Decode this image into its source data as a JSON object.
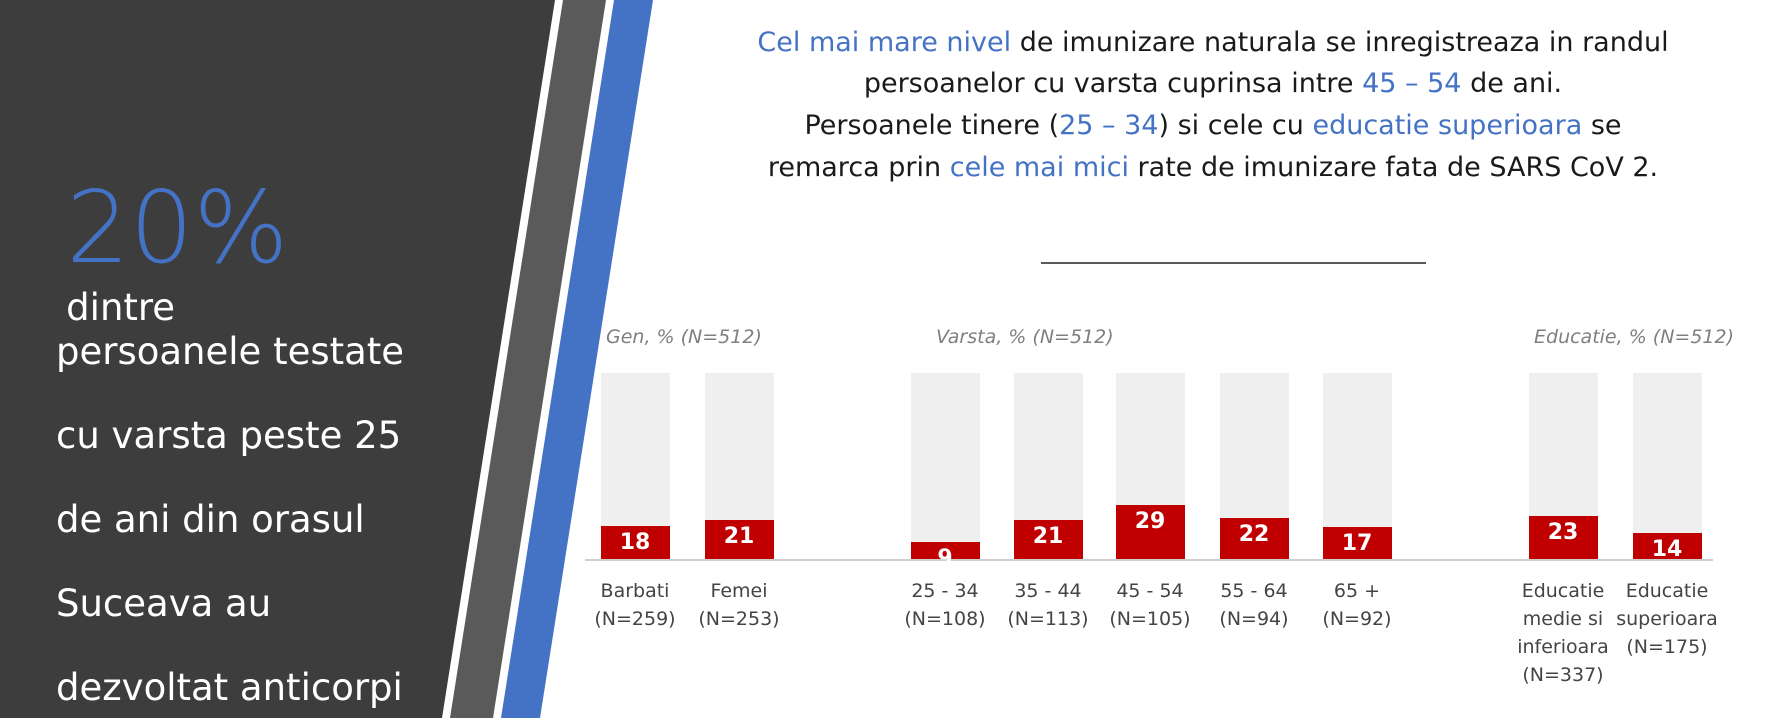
{
  "panel": {
    "stat": "20%",
    "stat_suffix": "dintre",
    "lines": [
      "persoanele testate",
      "cu varsta peste 25",
      "de ani din orasul",
      "Suceava au",
      "dezvoltat anticorpi"
    ]
  },
  "headline": {
    "lines": [
      [
        {
          "text": "Cel mai mare nivel",
          "color": "#4472c4"
        },
        {
          "text": " de imunizare naturala se inregistreaza in randul",
          "color": "#1a1a1a"
        }
      ],
      [
        {
          "text": "persoanelor cu varsta cuprinsa intre ",
          "color": "#1a1a1a"
        },
        {
          "text": "45 – 54",
          "color": "#4472c4"
        },
        {
          "text": " de ani.",
          "color": "#1a1a1a"
        }
      ],
      [
        {
          "text": "Persoanele tinere (",
          "color": "#1a1a1a"
        },
        {
          "text": "25 – 34",
          "color": "#4472c4"
        },
        {
          "text": ") si cele cu ",
          "color": "#1a1a1a"
        },
        {
          "text": "educatie superioara",
          "color": "#4472c4"
        },
        {
          "text": " se",
          "color": "#1a1a1a"
        }
      ],
      [
        {
          "text": "remarca prin ",
          "color": "#1a1a1a"
        },
        {
          "text": "cele mai mici",
          "color": "#4472c4"
        },
        {
          "text": " rate de imunizare fata de SARS CoV 2.",
          "color": "#1a1a1a"
        }
      ]
    ]
  },
  "chart_data": [
    {
      "type": "bar",
      "title": "Gen, % (N=512)",
      "categories": [
        "Barbati\n(N=259)",
        "Femei\n(N=253)"
      ],
      "values": [
        18,
        21
      ],
      "color": "#c00000",
      "track_color": "#efefef",
      "ylim": [
        0,
        100
      ]
    },
    {
      "type": "bar",
      "title": "Varsta, % (N=512)",
      "categories": [
        "25 - 34\n(N=108)",
        "35 - 44\n(N=113)",
        "45 - 54\n(N=105)",
        "55 - 64\n(N=94)",
        "65 +\n(N=92)"
      ],
      "values": [
        9,
        21,
        29,
        22,
        17
      ],
      "color": "#c00000",
      "track_color": "#efefef",
      "ylim": [
        0,
        100
      ]
    },
    {
      "type": "bar",
      "title": "Educatie, % (N=512)",
      "categories": [
        "Educatie\nmedie si\ninferioara\n(N=337)",
        "Educatie\nsuperioara\n(N=175)"
      ],
      "values": [
        23,
        14
      ],
      "color": "#c00000",
      "track_color": "#efefef",
      "ylim": [
        0,
        100
      ]
    }
  ]
}
